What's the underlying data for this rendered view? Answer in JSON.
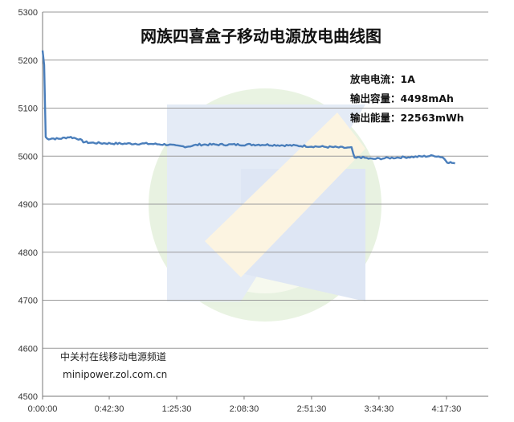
{
  "chart_data": {
    "type": "line",
    "title": "网族四喜盒子移动电源放电曲线图",
    "xlabel": "",
    "ylabel": "",
    "ylim": [
      4500,
      5300
    ],
    "y_ticks": [
      "4500",
      "4600",
      "4700",
      "4800",
      "4900",
      "5000",
      "5100",
      "5200",
      "5300"
    ],
    "x_ticks": [
      "0:00:00",
      "0:42:30",
      "1:25:30",
      "2:08:30",
      "2:51:30",
      "3:34:30",
      "4:17:30"
    ],
    "grid": true,
    "color": "#4a7ebb",
    "series": [
      {
        "name": "",
        "x": [
          "0:00:00",
          "0:01:00",
          "0:02:00",
          "0:03:00",
          "0:06:00",
          "0:10:00",
          "0:14:00",
          "0:17:00",
          "0:20:00",
          "0:23:00",
          "0:26:00",
          "0:30:00",
          "0:38:00",
          "0:50:00",
          "1:05:00",
          "1:20:00",
          "1:25:00",
          "1:32:00",
          "1:40:00",
          "2:00:00",
          "2:20:00",
          "2:40:00",
          "2:55:00",
          "3:10:00",
          "3:17:00",
          "3:19:00",
          "3:22:00",
          "3:30:00",
          "3:45:00",
          "4:00:00",
          "4:10:00",
          "4:15:00",
          "4:18:00",
          "4:21:00",
          "4:23:00"
        ],
        "values": [
          5220,
          5190,
          5040,
          5036,
          5037,
          5036,
          5038,
          5040,
          5038,
          5036,
          5030,
          5028,
          5027,
          5026,
          5026,
          5024,
          5021,
          5020,
          5024,
          5024,
          5024,
          5022,
          5020,
          5018,
          5017,
          4995,
          4998,
          4994,
          4997,
          4999,
          5001,
          4998,
          4988,
          4986,
          4985
        ]
      }
    ]
  },
  "annotations": {
    "current": "放电电流：1A",
    "capacity": "输出容量：4498mAh",
    "energy": "输出能量：22563mWh"
  },
  "source": {
    "name": "中关村在线移动电源频道",
    "url": "minipower.zol.com.cn"
  }
}
